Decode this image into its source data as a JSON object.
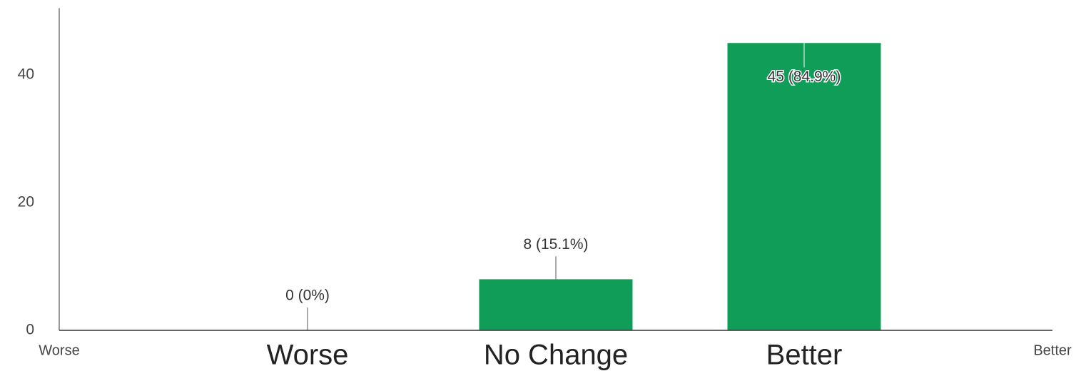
{
  "chart_data": {
    "type": "bar",
    "categories": [
      "Worse",
      "No Change",
      "Better"
    ],
    "values": [
      0,
      8,
      45
    ],
    "value_labels": [
      "0 (0%)",
      "8 (15.1%)",
      "45 (84.9%)"
    ],
    "scale_labels": [
      "Worse",
      "Better"
    ],
    "color": "#0f9d58",
    "ylim": [
      0,
      50
    ],
    "yticks": [
      0,
      20,
      40
    ],
    "grid": false
  }
}
